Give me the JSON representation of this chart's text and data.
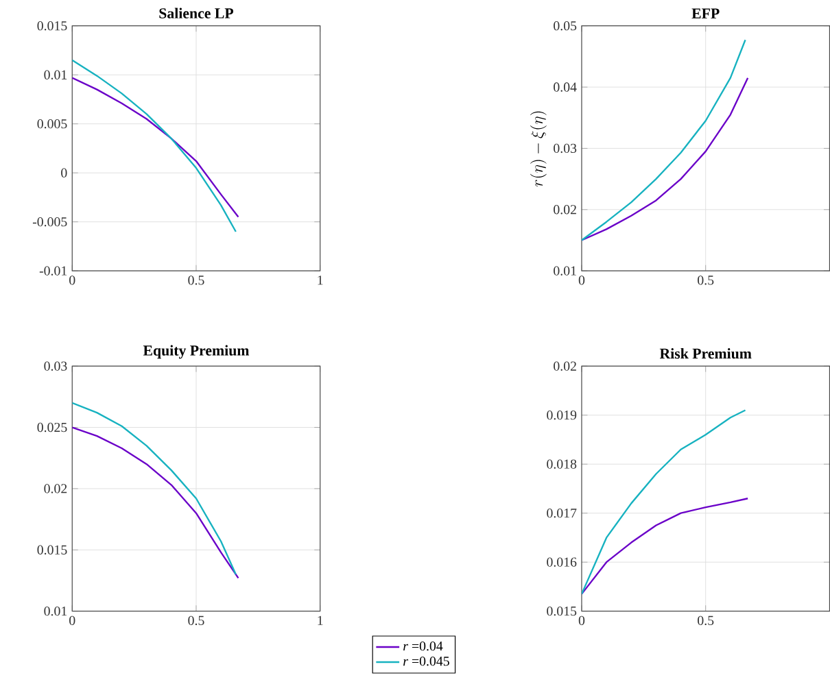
{
  "chart_data": [
    {
      "type": "line",
      "title": "Salience LP",
      "x": [
        0,
        0.1,
        0.2,
        0.3,
        0.4,
        0.5,
        0.6,
        0.66
      ],
      "xlim": [
        0,
        1
      ],
      "xticks": [
        0,
        0.5,
        1
      ],
      "ylim": [
        -0.01,
        0.015
      ],
      "yticks": [
        -0.01,
        -0.005,
        0,
        0.005,
        0.01,
        0.015
      ],
      "grid": true,
      "legend": false,
      "series": [
        {
          "color": "#6a00c8",
          "x": [
            0,
            0.1,
            0.2,
            0.3,
            0.4,
            0.5,
            0.6,
            0.67
          ],
          "values": [
            0.0097,
            0.0085,
            0.0071,
            0.0055,
            0.0035,
            0.0012,
            -0.0022,
            -0.0045
          ]
        },
        {
          "color": "#17b2c0",
          "values": [
            0.0115,
            0.0099,
            0.0081,
            0.006,
            0.0035,
            0.0005,
            -0.0033,
            -0.006
          ]
        }
      ]
    },
    {
      "type": "line",
      "title": "EFP",
      "ylabel": "r(\\eta)-\\xi(\\eta)",
      "x": [
        0,
        0.1,
        0.2,
        0.3,
        0.4,
        0.5,
        0.6,
        0.66
      ],
      "xlim": [
        0,
        1
      ],
      "xticks": [
        0,
        0.5
      ],
      "ylim": [
        0.01,
        0.05
      ],
      "yticks": [
        0.01,
        0.02,
        0.03,
        0.04,
        0.05
      ],
      "grid": true,
      "legend": false,
      "series": [
        {
          "color": "#6a00c8",
          "x": [
            0,
            0.1,
            0.2,
            0.3,
            0.4,
            0.5,
            0.6,
            0.67
          ],
          "values": [
            0.015,
            0.0168,
            0.019,
            0.0215,
            0.025,
            0.0295,
            0.0355,
            0.0415
          ]
        },
        {
          "color": "#17b2c0",
          "values": [
            0.015,
            0.018,
            0.0212,
            0.025,
            0.0293,
            0.0345,
            0.0415,
            0.0477
          ]
        }
      ]
    },
    {
      "type": "line",
      "title": "Equity Premium",
      "x": [
        0,
        0.1,
        0.2,
        0.3,
        0.4,
        0.5,
        0.6,
        0.66
      ],
      "xlim": [
        0,
        1
      ],
      "xticks": [
        0,
        0.5,
        1
      ],
      "ylim": [
        0.01,
        0.03
      ],
      "yticks": [
        0.01,
        0.015,
        0.02,
        0.025,
        0.03
      ],
      "grid": true,
      "legend": "bottom",
      "series": [
        {
          "name": "*r* =0.04",
          "color": "#6a00c8",
          "x": [
            0,
            0.1,
            0.2,
            0.3,
            0.4,
            0.5,
            0.6,
            0.67
          ],
          "values": [
            0.025,
            0.0243,
            0.0233,
            0.022,
            0.0203,
            0.018,
            0.0148,
            0.0127
          ]
        },
        {
          "name": "*r* =0.045",
          "color": "#17b2c0",
          "values": [
            0.027,
            0.0262,
            0.0251,
            0.0235,
            0.0215,
            0.0192,
            0.0157,
            0.013
          ]
        }
      ]
    },
    {
      "type": "line",
      "title": "Risk Premium",
      "x": [
        0,
        0.1,
        0.2,
        0.3,
        0.4,
        0.5,
        0.6,
        0.66
      ],
      "xlim": [
        0,
        1
      ],
      "xticks": [
        0,
        0.5
      ],
      "ylim": [
        0.015,
        0.02
      ],
      "yticks": [
        0.015,
        0.016,
        0.017,
        0.018,
        0.019,
        0.02
      ],
      "grid": true,
      "legend": false,
      "series": [
        {
          "color": "#6a00c8",
          "x": [
            0,
            0.1,
            0.2,
            0.3,
            0.4,
            0.5,
            0.6,
            0.67
          ],
          "values": [
            0.01535,
            0.016,
            0.0164,
            0.01675,
            0.017,
            0.01712,
            0.01722,
            0.0173
          ]
        },
        {
          "color": "#17b2c0",
          "values": [
            0.01535,
            0.0165,
            0.0172,
            0.0178,
            0.0183,
            0.0186,
            0.01895,
            0.0191
          ]
        }
      ]
    }
  ]
}
